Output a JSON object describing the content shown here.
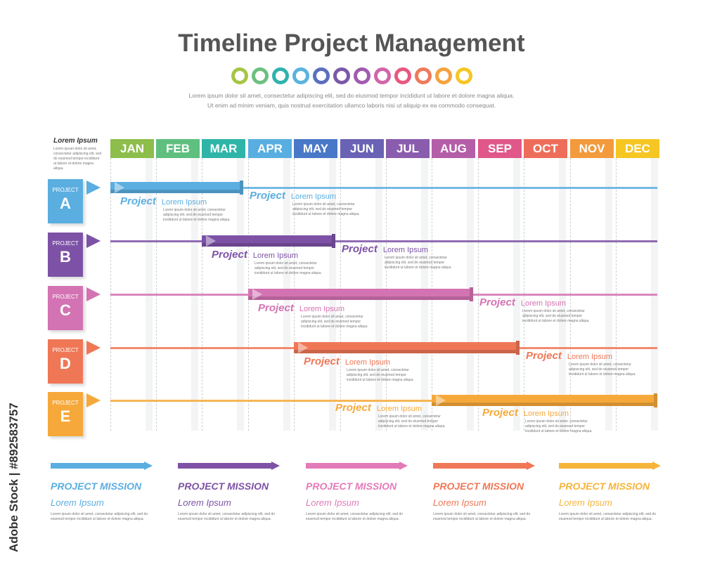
{
  "title": "Timeline Project Management",
  "dot_colors": [
    "#a7c545",
    "#6cc07f",
    "#2fb3ac",
    "#5ab3e0",
    "#5a6fbf",
    "#7a5aa8",
    "#a05cb0",
    "#d265a8",
    "#e8587f",
    "#ef7a5a",
    "#f5a23f",
    "#f6c623"
  ],
  "intro": {
    "line1": "Lorem ipsum dolor sit amet, consectetur adipiscing elit, sed do eiusmod tempor incididunt ut labore et dolore magna aliqua.",
    "line2": "Ut enim ad minim veniam, quis nostrud exercitation ullamco laboris nisi ut aliquip ex ea commodo consequat."
  },
  "side": {
    "title": "Lorem Ipsum",
    "desc": "Lorem ipsum dolor sit amet, consectetur adipiscing elit, sed do eiusmod tempor incididunt ut labore et dolore magna aliqua."
  },
  "months": [
    {
      "label": "JAN",
      "color": "#8dbd4b"
    },
    {
      "label": "FEB",
      "color": "#5fbf7f"
    },
    {
      "label": "MAR",
      "color": "#2eb5a8"
    },
    {
      "label": "APR",
      "color": "#58aee0"
    },
    {
      "label": "MAY",
      "color": "#4a78c8"
    },
    {
      "label": "JUN",
      "color": "#6a62b4"
    },
    {
      "label": "JUL",
      "color": "#8a5cae"
    },
    {
      "label": "AUG",
      "color": "#b45ea8"
    },
    {
      "label": "SEP",
      "color": "#e0588a"
    },
    {
      "label": "OCT",
      "color": "#ee6d5a"
    },
    {
      "label": "NOV",
      "color": "#f39a3c"
    },
    {
      "label": "DEC",
      "color": "#f6c623"
    }
  ],
  "projects": [
    {
      "label": "PROJECT",
      "letter": "A",
      "color": "#5aaee0",
      "start_month": 1,
      "end_month": 3,
      "annotations": [
        {
          "project": "Project",
          "lorem": "Lorem Ipsum",
          "desc": "Lorem ipsum dolor sit amet, consectetur adipiscing elit, sed do eiusmod tempor incididunt ut labore et dolore magna aliqua."
        },
        {
          "project": "Project",
          "lorem": "Lorem Ipsum",
          "desc": "Lorem ipsum dolor sit amet, consectetur adipiscing elit, sed do eiusmod tempor incididunt ut labore et dolore magna aliqua."
        }
      ]
    },
    {
      "label": "PROJECT",
      "letter": "B",
      "color": "#7d52a6",
      "start_month": 3,
      "end_month": 5,
      "annotations": [
        {
          "project": "Project",
          "lorem": "Lorem Ipsum",
          "desc": "Lorem ipsum dolor sit amet, consectetur adipiscing elit, sed do eiusmod tempor incididunt ut labore et dolore magna aliqua."
        },
        {
          "project": "Project",
          "lorem": "Lorem Ipsum",
          "desc": "Lorem ipsum dolor sit amet, consectetur adipiscing elit, sed do eiusmod tempor incididunt ut labore et dolore magna aliqua."
        }
      ]
    },
    {
      "label": "PROJECT",
      "letter": "C",
      "color": "#d473b3",
      "start_month": 4,
      "end_month": 8,
      "annotations": [
        {
          "project": "Project",
          "lorem": "Lorem Ipsum",
          "desc": "Lorem ipsum dolor sit amet, consectetur adipiscing elit, sed do eiusmod tempor incididunt ut labore et dolore magna aliqua."
        },
        {
          "project": "Project",
          "lorem": "Lorem Ipsum",
          "desc": "Lorem ipsum dolor sit amet, consectetur adipiscing elit, sed do eiusmod tempor incididunt ut labore et dolore magna aliqua."
        }
      ]
    },
    {
      "label": "PROJECT",
      "letter": "D",
      "color": "#ef7756",
      "start_month": 5,
      "end_month": 9,
      "annotations": [
        {
          "project": "Project",
          "lorem": "Lorem Ipsum",
          "desc": "Lorem ipsum dolor sit amet, consectetur adipiscing elit, sed do eiusmod tempor incididunt ut labore et dolore magna aliqua."
        },
        {
          "project": "Project",
          "lorem": "Lorem Ipsum",
          "desc": "Lorem ipsum dolor sit amet, consectetur adipiscing elit, sed do eiusmod tempor incididunt ut labore et dolore magna aliqua."
        }
      ]
    },
    {
      "label": "PROJECT",
      "letter": "E",
      "color": "#f6a93a",
      "start_month": 8,
      "end_month": 12,
      "annotations": [
        {
          "project": "Project",
          "lorem": "Lorem Ipsum",
          "desc": "Lorem ipsum dolor sit amet, consectetur adipiscing elit, sed do eiusmod tempor incididunt ut labore et dolore magna aliqua."
        },
        {
          "project": "Project",
          "lorem": "Lorem Ipsum",
          "desc": "Lorem ipsum dolor sit amet, consectetur adipiscing elit, sed do eiusmod tempor incididunt ut labore et dolore magna aliqua."
        }
      ]
    }
  ],
  "missions": [
    {
      "title": "PROJECT MISSION",
      "sub": "Lorem Ipsum",
      "color": "#5aaee0",
      "desc": "Lorem ipsum dolor sit amet, consectetur adipiscing elit, sed do eiusmod tempor incididunt ut labore et dolore magna aliqua."
    },
    {
      "title": "PROJECT MISSION",
      "sub": "Lorem Ipsum",
      "color": "#7d52a6",
      "desc": "Lorem ipsum dolor sit amet, consectetur adipiscing elit, sed do eiusmod tempor incididunt ut labore et dolore magna aliqua."
    },
    {
      "title": "PROJECT MISSION",
      "sub": "Lorem Ipsum",
      "color": "#e37ab8",
      "desc": "Lorem ipsum dolor sit amet, consectetur adipiscing elit, sed do eiusmod tempor incididunt ut labore et dolore magna aliqua."
    },
    {
      "title": "PROJECT MISSION",
      "sub": "Lorem Ipsum",
      "color": "#ef7756",
      "desc": "Lorem ipsum dolor sit amet, consectetur adipiscing elit, sed do eiusmod tempor incididunt ut labore et dolore magna aliqua."
    },
    {
      "title": "PROJECT MISSION",
      "sub": "Lorem Ipsum",
      "color": "#f6b43a",
      "desc": "Lorem ipsum dolor sit amet, consectetur adipiscing elit, sed do eiusmod tempor incididunt ut labore et dolore magna aliqua."
    }
  ],
  "watermark": "Adobe Stock | #892583757"
}
